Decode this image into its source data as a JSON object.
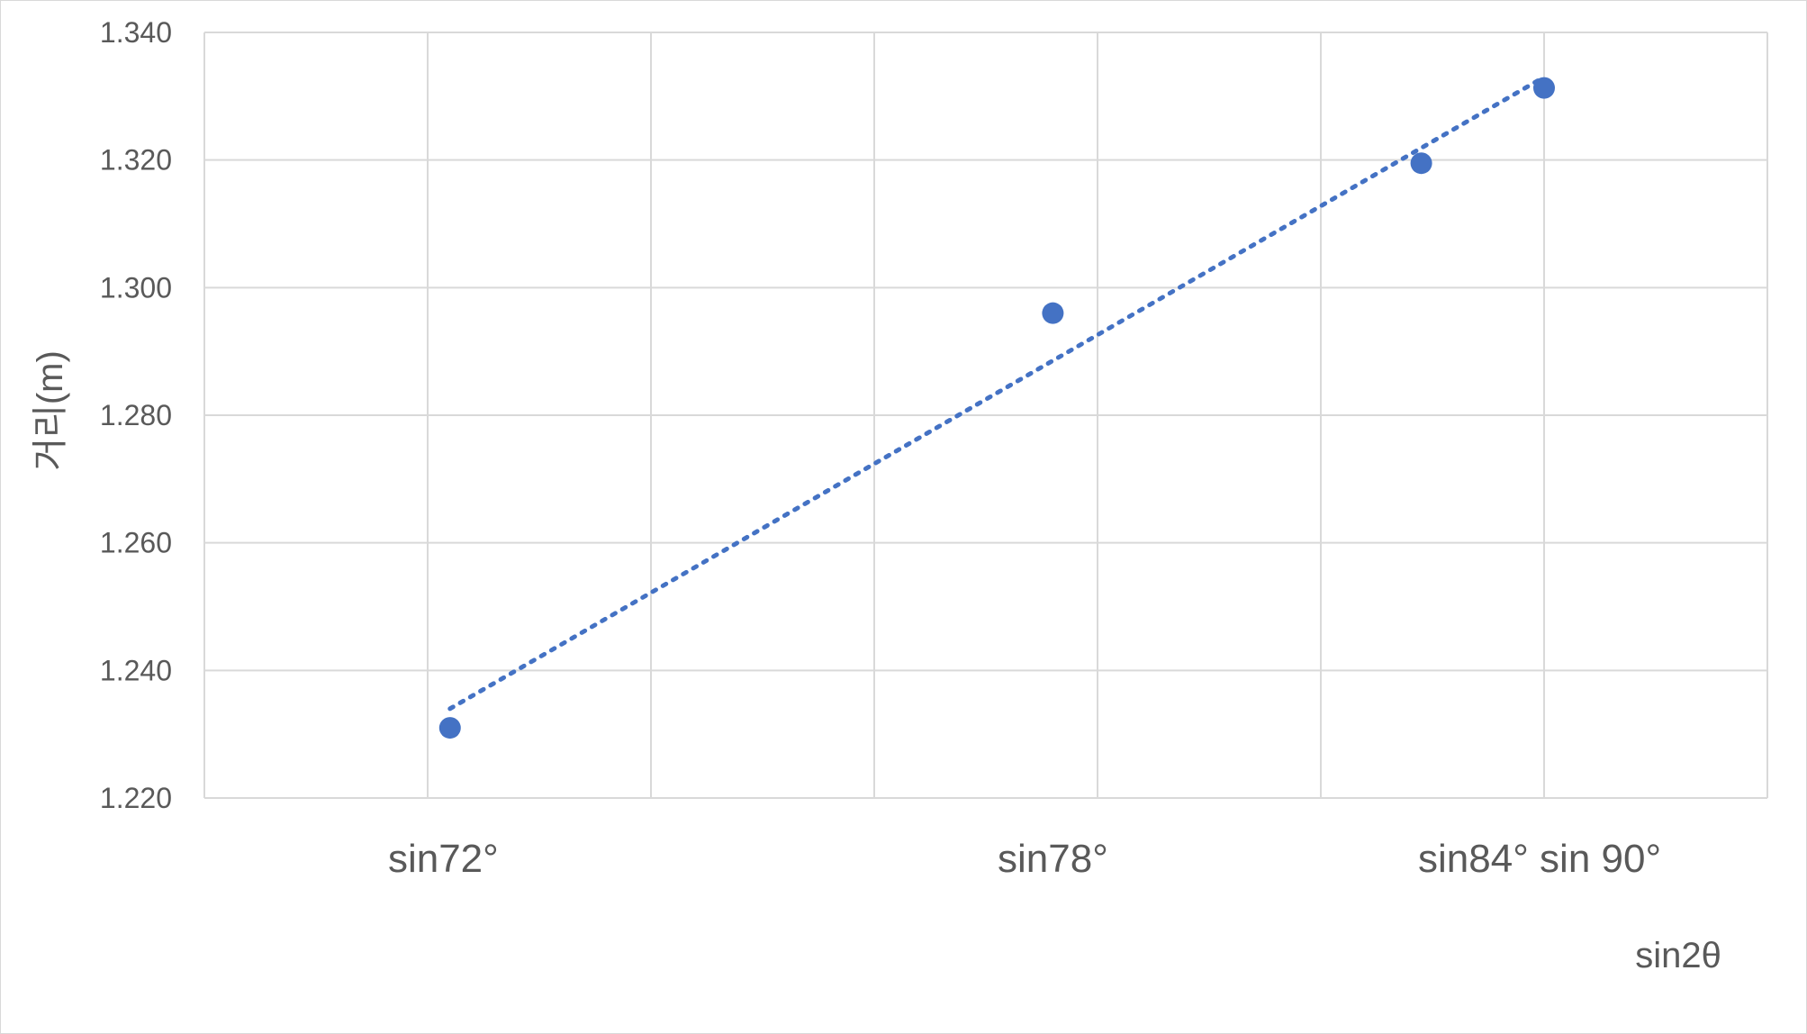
{
  "chart_data": {
    "type": "scatter",
    "title": "",
    "xlabel": "sin2θ",
    "ylabel": "거리(m)",
    "xlim": [
      0,
      7
    ],
    "ylim": [
      1.22,
      1.34
    ],
    "y_ticks": [
      "1.220",
      "1.240",
      "1.260",
      "1.280",
      "1.300",
      "1.320",
      "1.340"
    ],
    "y_tick_values": [
      1.22,
      1.24,
      1.26,
      1.28,
      1.3,
      1.32,
      1.34
    ],
    "x_grid_values": [
      1,
      2,
      3,
      4,
      5,
      6,
      7
    ],
    "x_tick_labels": [
      {
        "text": "sin72°",
        "x": 1.07
      },
      {
        "text": "sin78°",
        "x": 3.8
      },
      {
        "text": "sin84° sin 90°",
        "x": 5.98
      }
    ],
    "series": [
      {
        "name": "거리",
        "color": "#4472c4",
        "points": [
          {
            "x": 1.1,
            "y": 1.231
          },
          {
            "x": 3.8,
            "y": 1.296
          },
          {
            "x": 5.45,
            "y": 1.3195
          },
          {
            "x": 6.0,
            "y": 1.3313
          }
        ]
      }
    ],
    "trendline": {
      "type": "linear",
      "style": "dotted",
      "color": "#4472c4",
      "x_start": 1.1,
      "y_start": 1.234,
      "x_end": 6.0,
      "y_end": 1.333
    },
    "grid": true,
    "legend": "none"
  }
}
